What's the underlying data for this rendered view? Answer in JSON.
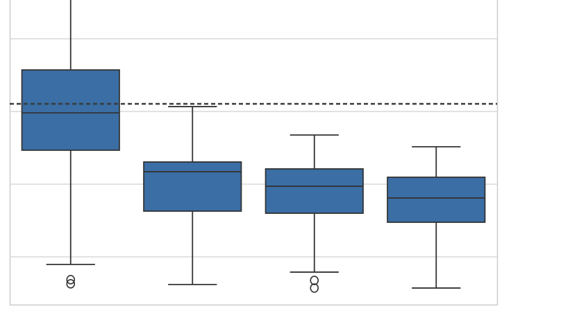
{
  "chart_data": {
    "type": "box",
    "title": "",
    "xlabel": "",
    "ylabel": "",
    "y_units_note": "",
    "ylim": [
      0.343,
      4.533
    ],
    "gridlines_y": [
      1,
      2,
      3,
      4
    ],
    "grid": true,
    "colors": {
      "box": "#3a6ea5",
      "line": "#333333",
      "grid": "#d9d9d9",
      "frame": "#cccccc"
    },
    "reference_line": {
      "value": 3.105,
      "style": "dashed"
    },
    "boxes": [
      {
        "whisker_high": 4.6,
        "q3": 3.571,
        "median": 2.981,
        "q1": 2.467,
        "whisker_low": 0.895,
        "outliers": [
          0.686,
          0.629
        ]
      },
      {
        "whisker_high": 3.067,
        "q3": 2.305,
        "median": 2.171,
        "q1": 1.629,
        "whisker_low": 0.619,
        "outliers": []
      },
      {
        "whisker_high": 2.676,
        "q3": 2.21,
        "median": 1.971,
        "q1": 1.6,
        "whisker_low": 0.79,
        "outliers": [
          0.676,
          0.571
        ]
      },
      {
        "whisker_high": 2.514,
        "q3": 2.095,
        "median": 1.81,
        "q1": 1.476,
        "whisker_low": 0.571,
        "outliers": []
      }
    ]
  }
}
